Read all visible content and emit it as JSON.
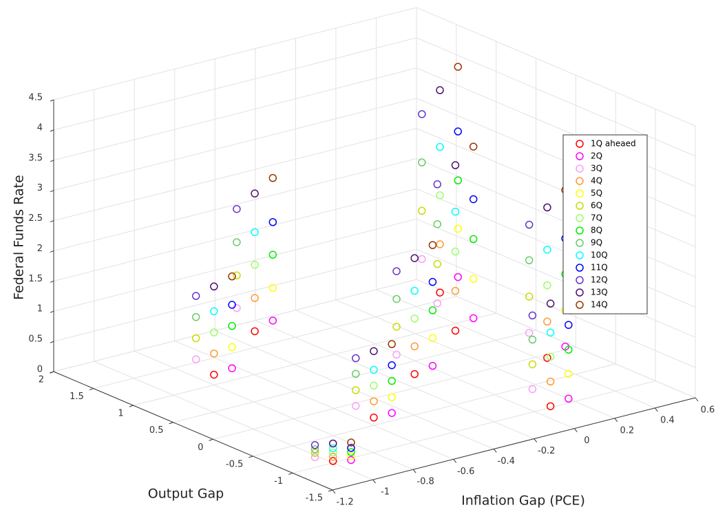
{
  "chart_data": {
    "type": "scatter3d",
    "xlabel": "Inflation Gap (PCE)",
    "ylabel": "Output Gap",
    "zlabel": "Federal Funds Rate",
    "xlim": [
      -1.2,
      0.6
    ],
    "xticks": [
      -1.2,
      -1,
      -0.8,
      -0.6,
      -0.4,
      -0.2,
      0,
      0.2,
      0.4,
      0.6
    ],
    "ylim": [
      -1.5,
      2
    ],
    "yticks": [
      -1.5,
      -1,
      -0.5,
      0,
      0.5,
      1,
      1.5,
      2
    ],
    "zlim": [
      0,
      4.5
    ],
    "zticks": [
      0,
      0.5,
      1,
      1.5,
      2,
      2.5,
      3,
      3.5,
      4,
      4.5
    ],
    "grid": true,
    "legend": "east",
    "series": [
      {
        "name": "1Q aheaed",
        "color": "#ff0000",
        "x": [
          -1,
          -0.6,
          -0.2,
          0.2,
          0.4,
          -0.8,
          -0.4,
          0,
          0.3
        ],
        "y": [
          -1,
          -0.5,
          0,
          0.5,
          1.2,
          1,
          1.5,
          -1.2,
          -0.4
        ],
        "z": [
          0.03,
          0.13,
          0.23,
          0.33,
          0.4,
          0.17,
          0.27,
          0.2,
          0.3
        ]
      },
      {
        "name": "2Q",
        "color": "#ff00ff",
        "x": [
          -0.95,
          -0.55,
          -0.15,
          0.25,
          0.45,
          -0.75,
          -0.35,
          0.05,
          0.35
        ],
        "y": [
          -1.1,
          -0.6,
          -0.1,
          0.4,
          1.1,
          0.9,
          1.4,
          -1.3,
          -0.5
        ],
        "z": [
          0.06,
          0.22,
          0.38,
          0.55,
          0.67,
          0.29,
          0.46,
          0.34,
          0.5
        ]
      },
      {
        "name": "3Q",
        "color": "#f7a0f7",
        "x": [
          -1.05,
          -0.65,
          -0.25,
          0.15,
          0.35,
          -0.85,
          -0.45,
          -0.05,
          0.25
        ],
        "y": [
          -0.9,
          -0.4,
          0.1,
          0.6,
          1.3,
          1.1,
          1.6,
          -1.1,
          -0.3
        ],
        "z": [
          0.08,
          0.31,
          0.54,
          0.77,
          0.94,
          0.41,
          0.64,
          0.47,
          0.7
        ]
      },
      {
        "name": "4Q",
        "color": "#ff9933",
        "x": [
          -1,
          -0.6,
          -0.2,
          0.2,
          0.4,
          -0.8,
          -0.4,
          0,
          0.3
        ],
        "y": [
          -1,
          -0.5,
          0,
          0.5,
          1.2,
          1,
          1.5,
          -1.2,
          -0.4
        ],
        "z": [
          0.1,
          0.4,
          0.69,
          0.99,
          1.2,
          0.52,
          0.82,
          0.61,
          0.9
        ]
      },
      {
        "name": "5Q",
        "color": "#ffff00",
        "x": [
          -0.95,
          -0.55,
          -0.15,
          0.25,
          0.45,
          -0.75,
          -0.35,
          0.05,
          0.35
        ],
        "y": [
          -1.1,
          -0.6,
          -0.1,
          0.4,
          1.1,
          0.9,
          1.4,
          -1.3,
          -0.5
        ],
        "z": [
          0.12,
          0.48,
          0.84,
          1.2,
          1.47,
          0.64,
          1,
          0.75,
          1.1
        ]
      },
      {
        "name": "6Q",
        "color": "#c8dc00",
        "x": [
          -1.05,
          -0.65,
          -0.25,
          0.15,
          0.35,
          -0.85,
          -0.45,
          -0.05,
          0.25
        ],
        "y": [
          -0.9,
          -0.4,
          0.1,
          0.6,
          1.3,
          1.1,
          1.6,
          -1.1,
          -0.3
        ],
        "z": [
          0.15,
          0.57,
          1,
          1.42,
          1.74,
          0.76,
          1.18,
          0.88,
          1.3
        ]
      },
      {
        "name": "7Q",
        "color": "#99ff66",
        "x": [
          -1,
          -0.6,
          -0.2,
          0.2,
          0.4,
          -0.8,
          -0.4,
          0,
          0.3
        ],
        "y": [
          -1,
          -0.5,
          0,
          0.5,
          1.2,
          1,
          1.5,
          -1.2,
          -0.4
        ],
        "z": [
          0.17,
          0.66,
          1.15,
          1.64,
          2.01,
          0.87,
          1.37,
          1.02,
          1.5
        ]
      },
      {
        "name": "8Q",
        "color": "#00ee00",
        "x": [
          -0.95,
          -0.55,
          -0.15,
          0.25,
          0.45,
          -0.75,
          -0.35,
          0.05,
          0.35
        ],
        "y": [
          -1.1,
          -0.6,
          -0.1,
          0.4,
          1.1,
          0.9,
          1.4,
          -1.3,
          -0.5
        ],
        "z": [
          0.19,
          0.75,
          1.3,
          1.86,
          2.27,
          0.99,
          1.55,
          1.15,
          1.7
        ]
      },
      {
        "name": "9Q",
        "color": "#66cc66",
        "x": [
          -1.05,
          -0.65,
          -0.25,
          0.15,
          0.35,
          -0.85,
          -0.45,
          -0.05,
          0.25
        ],
        "y": [
          -0.9,
          -0.4,
          0.1,
          0.6,
          1.3,
          1.1,
          1.6,
          -1.1,
          -0.3
        ],
        "z": [
          0.21,
          0.84,
          1.46,
          2.08,
          2.54,
          1.11,
          1.73,
          1.29,
          1.9
        ]
      },
      {
        "name": "10Q",
        "color": "#00ffff",
        "x": [
          -1,
          -0.6,
          -0.2,
          0.2,
          0.4,
          -0.8,
          -0.4,
          0,
          0.3
        ],
        "y": [
          -1,
          -0.5,
          0,
          0.5,
          1.2,
          1,
          1.5,
          -1.2,
          -0.4
        ],
        "z": [
          0.24,
          0.92,
          1.61,
          2.3,
          2.81,
          1.22,
          1.91,
          1.42,
          2.09
        ]
      },
      {
        "name": "11Q",
        "color": "#0000ff",
        "x": [
          -0.95,
          -0.55,
          -0.15,
          0.25,
          0.45,
          -0.75,
          -0.35,
          0.05,
          0.35
        ],
        "y": [
          -1.1,
          -0.6,
          -0.1,
          0.4,
          1.1,
          0.9,
          1.4,
          -1.3,
          -0.5
        ],
        "z": [
          0.26,
          1.01,
          1.77,
          2.52,
          3.08,
          1.34,
          2.09,
          1.56,
          2.29
        ]
      },
      {
        "name": "12Q",
        "color": "#6633cc",
        "x": [
          -1.05,
          -0.65,
          -0.25,
          0.15,
          0.35,
          -0.85,
          -0.45,
          -0.05,
          0.25
        ],
        "y": [
          -0.9,
          -0.4,
          0.1,
          0.6,
          1.3,
          1.1,
          1.6,
          -1.1,
          -0.3
        ],
        "z": [
          0.28,
          1.1,
          1.92,
          2.74,
          3.34,
          1.46,
          2.28,
          1.69,
          2.49
        ]
      },
      {
        "name": "13Q",
        "color": "#4b0f6e",
        "x": [
          -1,
          -0.6,
          -0.2,
          0.2,
          0.4,
          -0.8,
          -0.4,
          0,
          0.3
        ],
        "y": [
          -1,
          -0.5,
          0,
          0.5,
          1.2,
          1,
          1.5,
          -1.2,
          -0.4
        ],
        "z": [
          0.32,
          1.23,
          2.15,
          3.07,
          3.75,
          1.63,
          2.55,
          1.9,
          2.79
        ]
      },
      {
        "name": "14Q",
        "color": "#993300",
        "x": [
          -0.95,
          -0.55,
          -0.15,
          0.25,
          0.45,
          -0.75,
          -0.35,
          0.05,
          0.35
        ],
        "y": [
          -1.1,
          -0.6,
          -0.1,
          0.4,
          1.1,
          0.9,
          1.4,
          -1.3,
          -0.5
        ],
        "z": [
          0.35,
          1.36,
          2.38,
          3.39,
          4.15,
          1.81,
          2.82,
          2.1,
          3.09
        ]
      }
    ]
  }
}
